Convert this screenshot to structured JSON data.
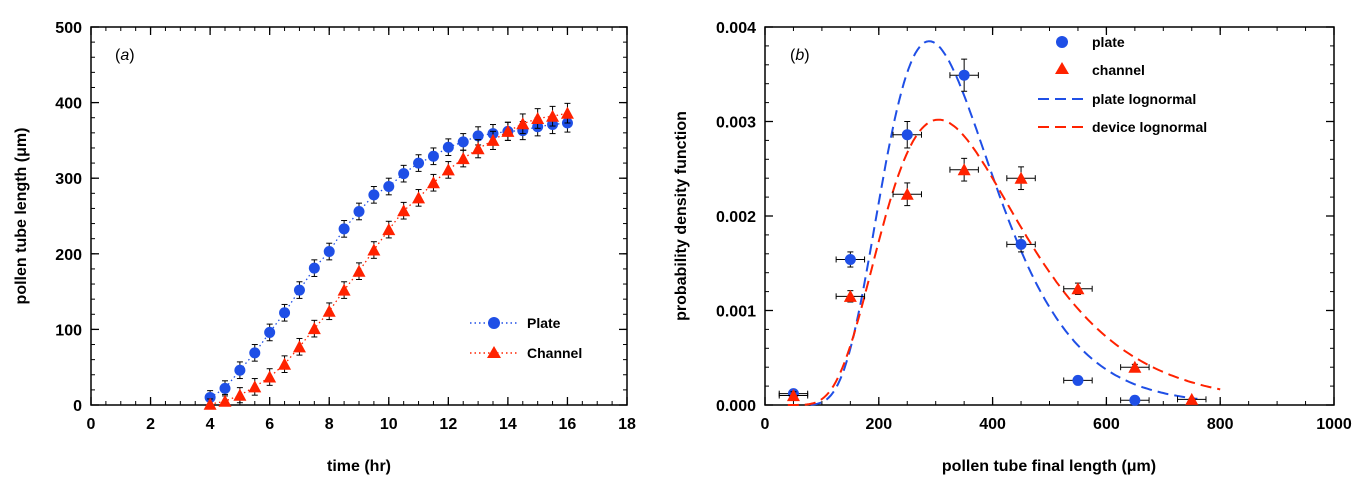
{
  "colors": {
    "plate": "#1f4fe6",
    "channel": "#ff2200",
    "plate_fit": "#1f4fe6",
    "device_fit": "#ff2200"
  },
  "chart_data": [
    {
      "type": "scatter",
      "panel_label": "a",
      "xlabel": "time (hr)",
      "ylabel": "pollen tube length (μm)",
      "xlim": [
        0,
        18
      ],
      "ylim": [
        0,
        500
      ],
      "x_ticks": [
        0,
        2,
        4,
        6,
        8,
        10,
        12,
        14,
        16,
        18
      ],
      "y_ticks": [
        0,
        100,
        200,
        300,
        400,
        500
      ],
      "x_tick_labels": [
        "0",
        "2",
        "4",
        "6",
        "8",
        "10",
        "12",
        "14",
        "16",
        "18"
      ],
      "y_tick_labels": [
        "0",
        "100",
        "200",
        "300",
        "400",
        "500"
      ],
      "grid": false,
      "legend_position": "bottom-right",
      "series": [
        {
          "name": "Plate",
          "marker": "circle",
          "line": "dotted",
          "color": "#1f4fe6",
          "x": [
            4,
            4.5,
            5,
            5.5,
            6,
            6.5,
            7,
            7.5,
            8,
            8.5,
            9,
            9.5,
            10,
            10.5,
            11,
            11.5,
            12,
            12.5,
            13,
            13.5,
            14,
            14.5,
            15,
            15.5,
            16
          ],
          "y": [
            10,
            22,
            46,
            69,
            96,
            122,
            152,
            181,
            203,
            233,
            256,
            278,
            289,
            306,
            320,
            329,
            341,
            348,
            356,
            359,
            362,
            363,
            368,
            371,
            373
          ],
          "err": [
            9,
            10,
            11,
            11,
            11,
            11,
            11,
            11,
            11,
            11,
            11,
            11,
            11,
            11,
            11,
            11,
            11,
            11,
            12,
            12,
            12,
            12,
            12,
            12,
            12
          ]
        },
        {
          "name": "Channel",
          "marker": "triangle",
          "line": "dotted",
          "color": "#ff2200",
          "x": [
            4,
            4.5,
            5,
            5.5,
            6,
            6.5,
            7,
            7.5,
            8,
            8.5,
            9,
            9.5,
            10,
            10.5,
            11,
            11.5,
            12,
            12.5,
            13,
            13.5,
            14,
            14.5,
            15,
            15.5,
            16
          ],
          "y": [
            1,
            5,
            13,
            24,
            37,
            54,
            77,
            101,
            124,
            152,
            177,
            205,
            232,
            257,
            274,
            294,
            311,
            326,
            339,
            350,
            362,
            372,
            379,
            382,
            386
          ],
          "err": [
            7,
            9,
            10,
            11,
            11,
            11,
            11,
            11,
            11,
            11,
            11,
            11,
            11,
            11,
            11,
            11,
            11,
            11,
            12,
            12,
            12,
            13,
            13,
            13,
            13
          ]
        }
      ]
    },
    {
      "type": "scatter",
      "panel_label": "b",
      "xlabel": "pollen tube final length (μm)",
      "ylabel": "probability density function",
      "xlim": [
        0,
        1000
      ],
      "ylim": [
        0,
        0.004
      ],
      "x_ticks": [
        0,
        200,
        400,
        600,
        800,
        1000
      ],
      "y_ticks": [
        0,
        0.001,
        0.002,
        0.003,
        0.004
      ],
      "x_tick_labels": [
        "0",
        "200",
        "400",
        "600",
        "800",
        "1000"
      ],
      "y_tick_labels": [
        "0.000",
        "0.001",
        "0.002",
        "0.003",
        "0.004"
      ],
      "grid": false,
      "legend_position": "top-right",
      "series": [
        {
          "name": "plate",
          "marker": "circle",
          "color": "#1f4fe6",
          "x": [
            50,
            150,
            250,
            350,
            450,
            550,
            650
          ],
          "y": [
            0.00012,
            0.00154,
            0.00286,
            0.00349,
            0.0017,
            0.00026,
            5e-05
          ],
          "yerr": [
            4e-05,
            8e-05,
            0.00014,
            0.00017,
            8e-05,
            2e-05,
            1e-05
          ],
          "xerr": 25
        },
        {
          "name": "channel",
          "marker": "triangle",
          "color": "#ff2200",
          "x": [
            50,
            150,
            250,
            350,
            450,
            550,
            650,
            750
          ],
          "y": [
            0.0001,
            0.00115,
            0.00223,
            0.00249,
            0.0024,
            0.00123,
            0.0004,
            6e-05
          ],
          "yerr": [
            4e-05,
            6e-05,
            0.00012,
            0.00012,
            0.00012,
            6e-05,
            3e-05,
            1e-05
          ],
          "xerr": 25
        },
        {
          "name": "plate lognormal",
          "type": "line",
          "dash": "long-dash",
          "color": "#1f4fe6",
          "x_range": [
            80,
            760
          ],
          "mu": 5.78,
          "sigma": 0.339
        },
        {
          "name": "device lognormal",
          "type": "line",
          "dash": "long-dash",
          "color": "#ff2200",
          "x_range": [
            40,
            800
          ],
          "mu": 5.88,
          "sigma": 0.4
        }
      ]
    }
  ]
}
